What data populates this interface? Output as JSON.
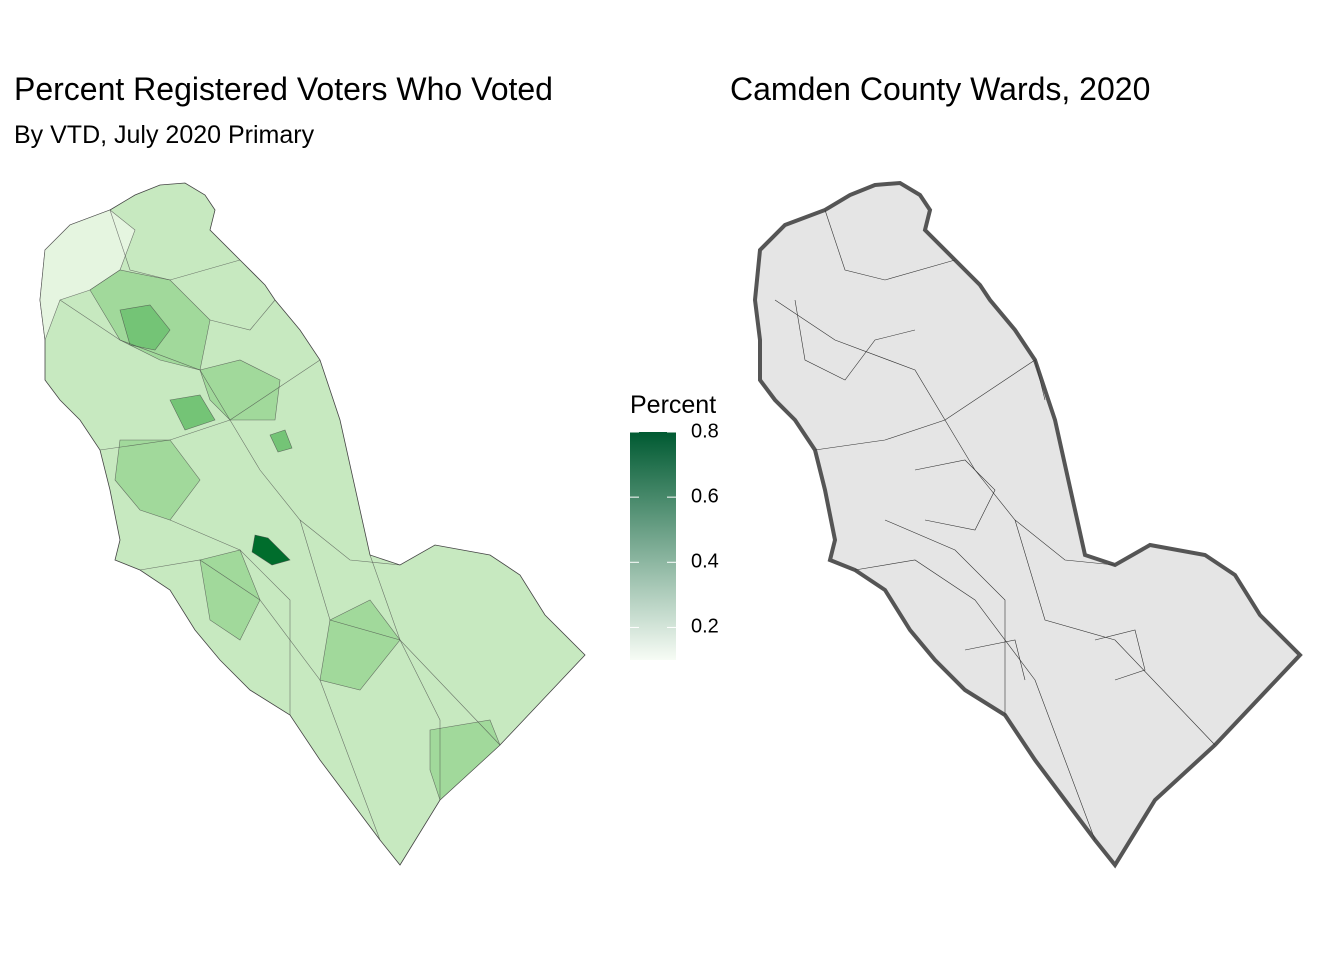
{
  "left_map": {
    "title": "Percent Registered Voters Who Voted",
    "subtitle": "By VTD, July 2020 Primary",
    "legend": {
      "title": "Percent",
      "lim": [
        0.1,
        0.8
      ],
      "ticks": [
        0.2,
        0.4,
        0.6,
        0.8
      ],
      "colors": [
        "#f7fcf5",
        "#005a32"
      ]
    }
  },
  "right_map": {
    "title": "Camden County Wards, 2020"
  }
}
